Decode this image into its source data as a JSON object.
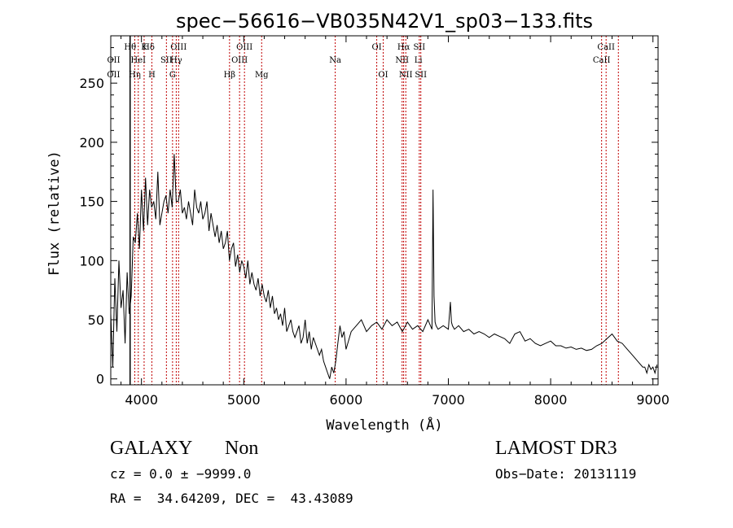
{
  "chart_data": {
    "type": "line",
    "title": "spec−56616−VB035N42V1_sp03−133.fits",
    "xlabel": "Wavelength (Å)",
    "ylabel": "Flux (relative)",
    "xlim": [
      3700,
      9050
    ],
    "ylim": [
      -5,
      290
    ],
    "xticks": [
      4000,
      5000,
      6000,
      7000,
      8000,
      9000
    ],
    "yticks": [
      0,
      50,
      100,
      150,
      200,
      250
    ],
    "grid": false,
    "series": [
      {
        "name": "flux",
        "x": [
          3700,
          3720,
          3740,
          3760,
          3780,
          3800,
          3820,
          3840,
          3860,
          3880,
          3900,
          3920,
          3940,
          3960,
          3980,
          4000,
          4020,
          4040,
          4060,
          4080,
          4100,
          4120,
          4140,
          4160,
          4180,
          4200,
          4220,
          4240,
          4260,
          4280,
          4300,
          4320,
          4340,
          4360,
          4380,
          4400,
          4420,
          4440,
          4460,
          4480,
          4500,
          4520,
          4540,
          4560,
          4580,
          4600,
          4620,
          4640,
          4660,
          4680,
          4700,
          4720,
          4740,
          4760,
          4780,
          4800,
          4820,
          4840,
          4860,
          4880,
          4900,
          4920,
          4940,
          4960,
          4980,
          5000,
          5020,
          5040,
          5060,
          5080,
          5100,
          5120,
          5140,
          5160,
          5180,
          5200,
          5220,
          5240,
          5260,
          5280,
          5300,
          5320,
          5340,
          5360,
          5380,
          5400,
          5420,
          5440,
          5460,
          5480,
          5500,
          5520,
          5540,
          5560,
          5580,
          5600,
          5620,
          5640,
          5660,
          5680,
          5700,
          5720,
          5740,
          5760,
          5780,
          5800,
          5820,
          5840,
          5860,
          5880,
          5900,
          5920,
          5940,
          5960,
          5980,
          6000,
          6050,
          6100,
          6150,
          6200,
          6250,
          6300,
          6350,
          6400,
          6450,
          6500,
          6550,
          6600,
          6650,
          6700,
          6750,
          6800,
          6840,
          6850,
          6860,
          6870,
          6880,
          6900,
          6950,
          7000,
          7020,
          7030,
          7040,
          7060,
          7100,
          7150,
          7200,
          7250,
          7300,
          7350,
          7400,
          7450,
          7500,
          7550,
          7600,
          7650,
          7700,
          7750,
          7800,
          7850,
          7900,
          7950,
          8000,
          8050,
          8100,
          8150,
          8200,
          8250,
          8300,
          8350,
          8400,
          8450,
          8500,
          8550,
          8600,
          8650,
          8700,
          8750,
          8800,
          8850,
          8900,
          8920,
          8940,
          8960,
          8980,
          9000,
          9020,
          9040
        ],
        "y": [
          55,
          10,
          85,
          40,
          100,
          60,
          75,
          30,
          90,
          55,
          70,
          120,
          115,
          140,
          110,
          160,
          125,
          170,
          130,
          160,
          145,
          150,
          135,
          175,
          130,
          140,
          150,
          155,
          140,
          160,
          145,
          190,
          150,
          150,
          160,
          140,
          145,
          135,
          150,
          140,
          130,
          160,
          145,
          140,
          150,
          135,
          140,
          150,
          125,
          140,
          130,
          120,
          130,
          115,
          125,
          110,
          115,
          125,
          100,
          110,
          115,
          95,
          105,
          90,
          100,
          95,
          85,
          100,
          80,
          90,
          80,
          75,
          85,
          70,
          80,
          70,
          65,
          75,
          60,
          70,
          55,
          60,
          50,
          55,
          45,
          60,
          40,
          45,
          50,
          40,
          35,
          40,
          45,
          30,
          35,
          50,
          30,
          40,
          25,
          35,
          30,
          25,
          20,
          25,
          15,
          10,
          5,
          0,
          10,
          5,
          15,
          30,
          45,
          35,
          40,
          25,
          40,
          45,
          50,
          40,
          45,
          48,
          42,
          50,
          45,
          48,
          40,
          48,
          42,
          45,
          40,
          50,
          42,
          160,
          70,
          48,
          45,
          42,
          45,
          42,
          65,
          48,
          45,
          42,
          45,
          40,
          42,
          38,
          40,
          38,
          35,
          38,
          36,
          34,
          30,
          38,
          40,
          32,
          34,
          30,
          28,
          30,
          32,
          28,
          28,
          26,
          27,
          25,
          26,
          24,
          25,
          28,
          30,
          34,
          38,
          32,
          30,
          25,
          20,
          15,
          10,
          10,
          5,
          12,
          8,
          10,
          5,
          12
        ],
        "color": "#000000"
      }
    ],
    "lines": [
      {
        "wavelength": 3727,
        "label": "OII",
        "row": 2
      },
      {
        "wavelength": 3728,
        "label": "OII",
        "row": 1
      },
      {
        "wavelength": 3889,
        "label": "Hθ",
        "row": 0
      },
      {
        "wavelength": 3935,
        "label": "Hη",
        "row": 2
      },
      {
        "wavelength": 3969,
        "label": "HeI",
        "row": 1
      },
      {
        "wavelength": 4026,
        "label": "K",
        "row": 0
      },
      {
        "wavelength": 4102,
        "label": "H",
        "row": 2
      },
      {
        "wavelength": 4070,
        "label": "Hδ",
        "row": 0
      },
      {
        "wavelength": 4244,
        "label": "SII",
        "row": 1
      },
      {
        "wavelength": 4304,
        "label": "G",
        "row": 2
      },
      {
        "wavelength": 4340,
        "label": "Hγ",
        "row": 1
      },
      {
        "wavelength": 4363,
        "label": "OIII",
        "row": 0
      },
      {
        "wavelength": 4861,
        "label": "Hβ",
        "row": 2
      },
      {
        "wavelength": 4959,
        "label": "OIII",
        "row": 1
      },
      {
        "wavelength": 5007,
        "label": "OIII",
        "row": 0
      },
      {
        "wavelength": 5175,
        "label": "Mg",
        "row": 2
      },
      {
        "wavelength": 5894,
        "label": "Na",
        "row": 1
      },
      {
        "wavelength": 6300,
        "label": "OI",
        "row": 0
      },
      {
        "wavelength": 6363,
        "label": "OI",
        "row": 2
      },
      {
        "wavelength": 6548,
        "label": "NII",
        "row": 1
      },
      {
        "wavelength": 6563,
        "label": "Hα",
        "row": 0
      },
      {
        "wavelength": 6584,
        "label": "NII",
        "row": 2
      },
      {
        "wavelength": 6707,
        "label": "Li",
        "row": 1
      },
      {
        "wavelength": 6716,
        "label": "SII",
        "row": 0
      },
      {
        "wavelength": 6731,
        "label": "SII",
        "row": 2
      },
      {
        "wavelength": 8498,
        "label": "CaII",
        "row": 1
      },
      {
        "wavelength": 8542,
        "label": "CaII",
        "row": 0
      }
    ],
    "marker_positions": [
      3890,
      3935,
      3969,
      4026,
      4102,
      4244,
      4304,
      4340,
      4363,
      4861,
      4959,
      5007,
      5175,
      5894,
      6300,
      6363,
      6548,
      6563,
      6584,
      6716,
      6731,
      8498,
      8542,
      8662
    ]
  },
  "info": {
    "class": "GALAXY",
    "subclass": "Non",
    "survey": "LAMOST DR3",
    "cz": "cz = 0.0 ± −9999.0",
    "obs_date": "Obs−Date: 20131119",
    "coords": "RA =  34.64209, DEC =  43.43089"
  }
}
